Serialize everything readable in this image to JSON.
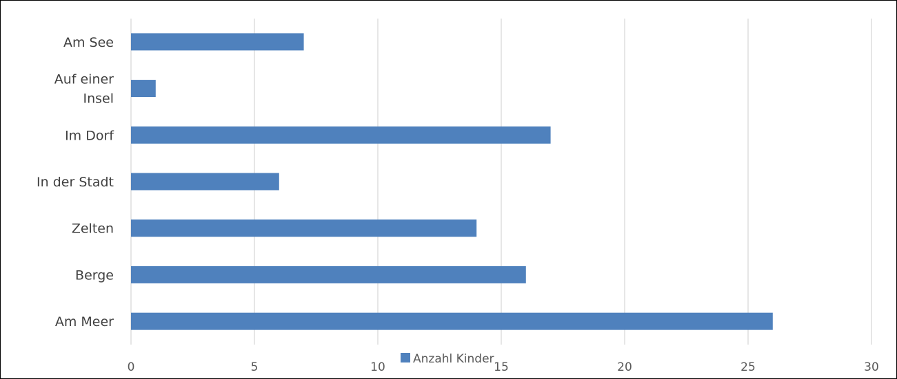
{
  "chart_data": {
    "type": "bar",
    "orientation": "horizontal",
    "categories": [
      "Am See",
      "Auf einer Insel",
      "Im Dorf",
      "In der Stadt",
      "Zelten",
      "Berge",
      "Am Meer"
    ],
    "category_lines": [
      [
        "Am See"
      ],
      [
        "Auf einer",
        "Insel"
      ],
      [
        "Im Dorf"
      ],
      [
        "In der Stadt"
      ],
      [
        "Zelten"
      ],
      [
        "Berge"
      ],
      [
        "Am Meer"
      ]
    ],
    "series": [
      {
        "name": "Anzahl Kinder",
        "values": [
          7,
          1,
          17,
          6,
          14,
          16,
          26
        ],
        "color": "#4f81bd"
      }
    ],
    "xlim": [
      0,
      30
    ],
    "xticks": [
      0,
      5,
      10,
      15,
      20,
      25,
      30
    ],
    "title": "",
    "xlabel": "",
    "ylabel": "",
    "grid": true,
    "legend": "bottom",
    "gridline_color": "#d9d9d9"
  }
}
